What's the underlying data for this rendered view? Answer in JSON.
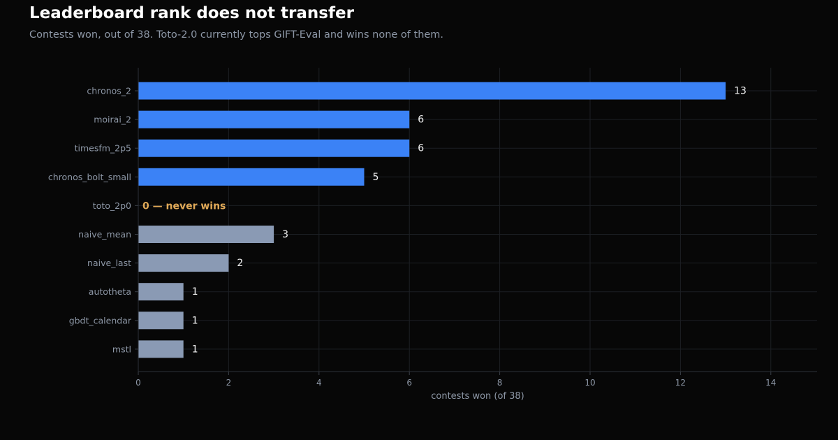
{
  "title": "Leaderboard rank does not transfer",
  "subtitle": "Contests won, out of 38. Toto-2.0 currently tops GIFT-Eval and wins none of them.",
  "colors": {
    "background": "#070707",
    "highlight_bar": "#3b82f6",
    "baseline_bar": "#8a9ab4",
    "zero_annotation": "#e0a957",
    "value_label": "#f2f2f2",
    "axis_text": "#8d97a6",
    "grid": "#1c1f24"
  },
  "chart_data": {
    "type": "bar",
    "orientation": "horizontal",
    "categories": [
      "chronos_2",
      "moirai_2",
      "timesfm_2p5",
      "chronos_bolt_small",
      "toto_2p0",
      "naive_mean",
      "naive_last",
      "autotheta",
      "gbdt_calendar",
      "mstl"
    ],
    "values": [
      13,
      6,
      6,
      5,
      0,
      3,
      2,
      1,
      1,
      1
    ],
    "bar_groups": [
      "highlight",
      "highlight",
      "highlight",
      "highlight",
      "highlight",
      "baseline",
      "baseline",
      "baseline",
      "baseline",
      "baseline"
    ],
    "data_labels": [
      "13",
      "6",
      "6",
      "5",
      "0 — never wins",
      "3",
      "2",
      "1",
      "1",
      "1"
    ],
    "xlabel": "contests won (of 38)",
    "ylabel": "",
    "xlim": [
      0,
      15
    ],
    "xticks": [
      0,
      2,
      4,
      6,
      8,
      10,
      12,
      14
    ],
    "grid": true
  }
}
